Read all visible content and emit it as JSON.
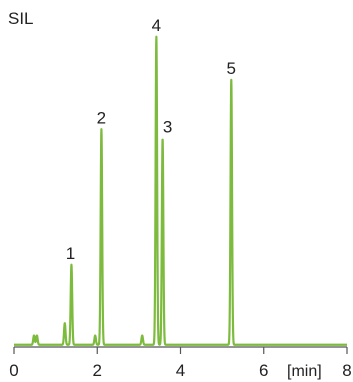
{
  "chart_data": {
    "type": "line",
    "title": "SIL",
    "x_unit_label": "[min]",
    "xlim": [
      0,
      8
    ],
    "ylim": [
      0,
      1
    ],
    "x_ticks": [
      0,
      2,
      4,
      6,
      8
    ],
    "x_tick_labels": [
      "0",
      "2",
      "4",
      "6",
      "8"
    ],
    "grid": false,
    "line_color": "#7dbb3f",
    "axis_color": "#555555",
    "series": [
      {
        "peaks": [
          {
            "label": "",
            "x": 0.48,
            "height": 0.03
          },
          {
            "label": "",
            "x": 0.55,
            "height": 0.03
          },
          {
            "label": "",
            "x": 1.22,
            "height": 0.07
          },
          {
            "label": "1",
            "x": 1.38,
            "height": 0.26
          },
          {
            "label": "",
            "x": 1.95,
            "height": 0.03
          },
          {
            "label": "2",
            "x": 2.1,
            "height": 0.7
          },
          {
            "label": "",
            "x": 3.08,
            "height": 0.03
          },
          {
            "label": "4",
            "x": 3.42,
            "height": 1.0
          },
          {
            "label": "3",
            "x": 3.57,
            "height": 0.67
          },
          {
            "label": "5",
            "x": 5.22,
            "height": 0.86
          }
        ]
      }
    ]
  }
}
